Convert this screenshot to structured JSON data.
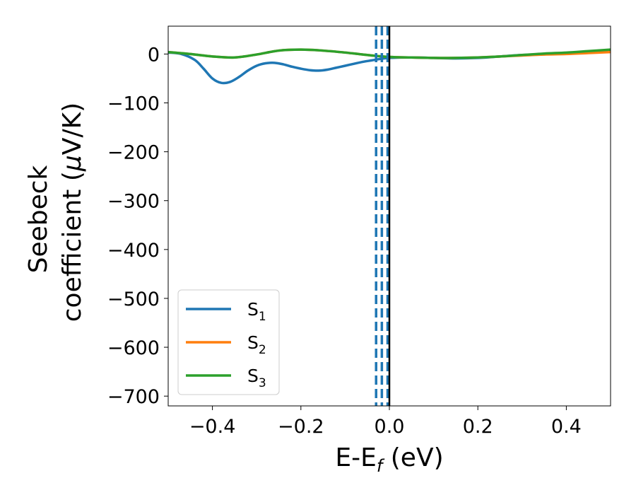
{
  "chart_data": {
    "type": "line",
    "xlabel": "E-E",
    "xlabel_sub": "f",
    "xlabel_unit": " (eV)",
    "ylabel_line1": "Seebeck",
    "ylabel_line2": "coefficient  (",
    "ylabel_mu": "μ",
    "ylabel_unit": "V/K)",
    "xlim": [
      -0.5,
      0.5
    ],
    "ylim": [
      -720,
      57
    ],
    "xticks": [
      -0.4,
      -0.2,
      0.0,
      0.2,
      0.4
    ],
    "xtick_labels": [
      "−0.4",
      "−0.2",
      "0.0",
      "0.2",
      "0.4"
    ],
    "yticks": [
      0,
      -100,
      -200,
      -300,
      -400,
      -500,
      -600,
      -700
    ],
    "ytick_labels": [
      "0",
      "−100",
      "−200",
      "−300",
      "−400",
      "−500",
      "−600",
      "−700"
    ],
    "grid": false,
    "legend_position": "lower-left",
    "series": [
      {
        "name": "S",
        "sub": "1",
        "color": "#1f77b4",
        "x": [
          -0.5,
          -0.47,
          -0.44,
          -0.42,
          -0.4,
          -0.38,
          -0.36,
          -0.34,
          -0.32,
          -0.3,
          -0.28,
          -0.26,
          -0.24,
          -0.22,
          -0.2,
          -0.18,
          -0.16,
          -0.14,
          -0.12,
          -0.1,
          -0.08,
          -0.06,
          -0.04,
          -0.02,
          0.0,
          0.05,
          0.1,
          0.15,
          0.2,
          0.25,
          0.3,
          0.35,
          0.4,
          0.45,
          0.5
        ],
        "y": [
          3,
          0,
          -12,
          -30,
          -50,
          -59,
          -57,
          -47,
          -34,
          -24,
          -19,
          -18,
          -21,
          -26,
          -30,
          -33,
          -34,
          -32,
          -28,
          -24,
          -20,
          -16,
          -13,
          -10,
          -8,
          -7,
          -8,
          -9,
          -8,
          -5,
          -2,
          0,
          2,
          5,
          8
        ]
      },
      {
        "name": "S",
        "sub": "2",
        "color": "#ff7f0e",
        "x": [
          -0.5,
          -0.45,
          -0.4,
          -0.35,
          -0.3,
          -0.25,
          -0.2,
          -0.15,
          -0.1,
          -0.05,
          0.0,
          0.05,
          0.1,
          0.15,
          0.2,
          0.25,
          0.3,
          0.35,
          0.4,
          0.45,
          0.5
        ],
        "y": [
          4,
          0,
          -5,
          -7,
          -1,
          7,
          9,
          7,
          3,
          -2,
          -6,
          -7,
          -8,
          -8,
          -7,
          -5,
          -3,
          -1,
          0,
          2,
          4
        ]
      },
      {
        "name": "S",
        "sub": "3",
        "color": "#2ca02c",
        "x": [
          -0.5,
          -0.45,
          -0.4,
          -0.35,
          -0.3,
          -0.25,
          -0.2,
          -0.15,
          -0.1,
          -0.05,
          0.0,
          0.05,
          0.1,
          0.15,
          0.2,
          0.25,
          0.3,
          0.35,
          0.4,
          0.45,
          0.5
        ],
        "y": [
          4,
          0,
          -5,
          -7,
          -1,
          7,
          9,
          7,
          3,
          -2,
          -6,
          -7,
          -8,
          -8,
          -7,
          -5,
          -2,
          1,
          3,
          6,
          9
        ]
      }
    ],
    "vlines": [
      {
        "x": -0.03,
        "style": "dashed",
        "color": "#1f77b4"
      },
      {
        "x": -0.017,
        "style": "dashed",
        "color": "#1f77b4"
      },
      {
        "x": -0.004,
        "style": "dashed",
        "color": "#1f77b4"
      },
      {
        "x": 0.0,
        "style": "solid",
        "color": "#000000"
      }
    ]
  }
}
